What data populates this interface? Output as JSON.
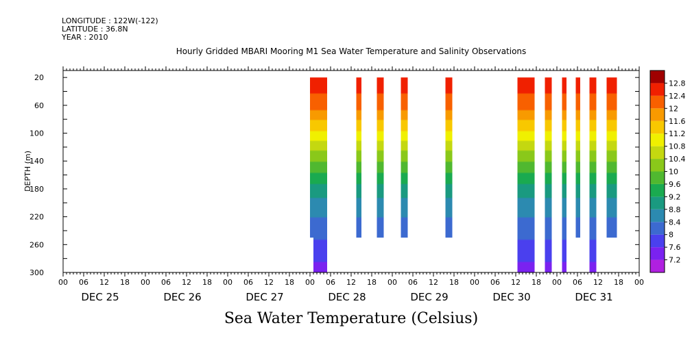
{
  "header": {
    "longitude": "LONGITUDE : 122W(-122)",
    "latitude": "LATITUDE : 36.8N",
    "year": "YEAR : 2010"
  },
  "chart_data": {
    "type": "heatmap",
    "title": "Hourly Gridded MBARI Mooring M1 Sea Water Temperature and Salinity Observations",
    "xlabel": "",
    "ylabel": "DEPTH (m)",
    "colorbar_title": "Sea Water Temperature (Celsius)",
    "y_ticks": [
      20,
      60,
      100,
      140,
      180,
      220,
      260,
      300
    ],
    "y_range": [
      10,
      300
    ],
    "x_range_hours": [
      0,
      168
    ],
    "x_hour_labels": [
      "00",
      "06",
      "12",
      "18",
      "00",
      "06",
      "12",
      "18",
      "00",
      "06",
      "12",
      "18",
      "00",
      "06",
      "12",
      "18",
      "00",
      "06",
      "12",
      "18",
      "00",
      "06",
      "12",
      "18",
      "00",
      "06",
      "12",
      "18",
      "00"
    ],
    "x_day_labels": [
      "DEC 25",
      "DEC 26",
      "DEC 27",
      "DEC 28",
      "DEC 29",
      "DEC 30",
      "DEC 31"
    ],
    "colorbar": {
      "levels": [
        7.2,
        7.6,
        8,
        8.4,
        8.8,
        9.2,
        9.6,
        10,
        10.4,
        10.8,
        11.2,
        11.6,
        12,
        12.4,
        12.8
      ],
      "colors": [
        "#b020e0",
        "#7a22f0",
        "#4a40ee",
        "#3c6ad0",
        "#2c8ab0",
        "#1a9a80",
        "#1aaa50",
        "#50b830",
        "#8ac81a",
        "#c4d810",
        "#f0f000",
        "#f8c800",
        "#f89a00",
        "#f86000",
        "#f02000",
        "#a00000"
      ]
    },
    "bands": [
      {
        "start_hour": 72,
        "end_hour": 73,
        "bottom_depth": 250
      },
      {
        "start_hour": 73,
        "end_hour": 77,
        "bottom_depth": 300
      },
      {
        "start_hour": 85.5,
        "end_hour": 87,
        "bottom_depth": 250
      },
      {
        "start_hour": 91.5,
        "end_hour": 93.5,
        "bottom_depth": 250
      },
      {
        "start_hour": 98.5,
        "end_hour": 100.5,
        "bottom_depth": 250
      },
      {
        "start_hour": 111.5,
        "end_hour": 113.5,
        "bottom_depth": 250
      },
      {
        "start_hour": 132.5,
        "end_hour": 137.5,
        "bottom_depth": 300
      },
      {
        "start_hour": 140.5,
        "end_hour": 142.5,
        "bottom_depth": 300
      },
      {
        "start_hour": 145.5,
        "end_hour": 146.8,
        "bottom_depth": 300
      },
      {
        "start_hour": 149.5,
        "end_hour": 150.8,
        "bottom_depth": 250
      },
      {
        "start_hour": 153.5,
        "end_hour": 155.5,
        "bottom_depth": 300
      },
      {
        "start_hour": 158.5,
        "end_hour": 161.5,
        "bottom_depth": 250
      }
    ],
    "temperature_profile": [
      {
        "depth": 20,
        "value": 12.7
      },
      {
        "depth": 60,
        "value": 12.2
      },
      {
        "depth": 100,
        "value": 11.1
      },
      {
        "depth": 140,
        "value": 10.0
      },
      {
        "depth": 180,
        "value": 9.0
      },
      {
        "depth": 220,
        "value": 8.4
      },
      {
        "depth": 260,
        "value": 7.9
      },
      {
        "depth": 300,
        "value": 7.4
      }
    ]
  }
}
